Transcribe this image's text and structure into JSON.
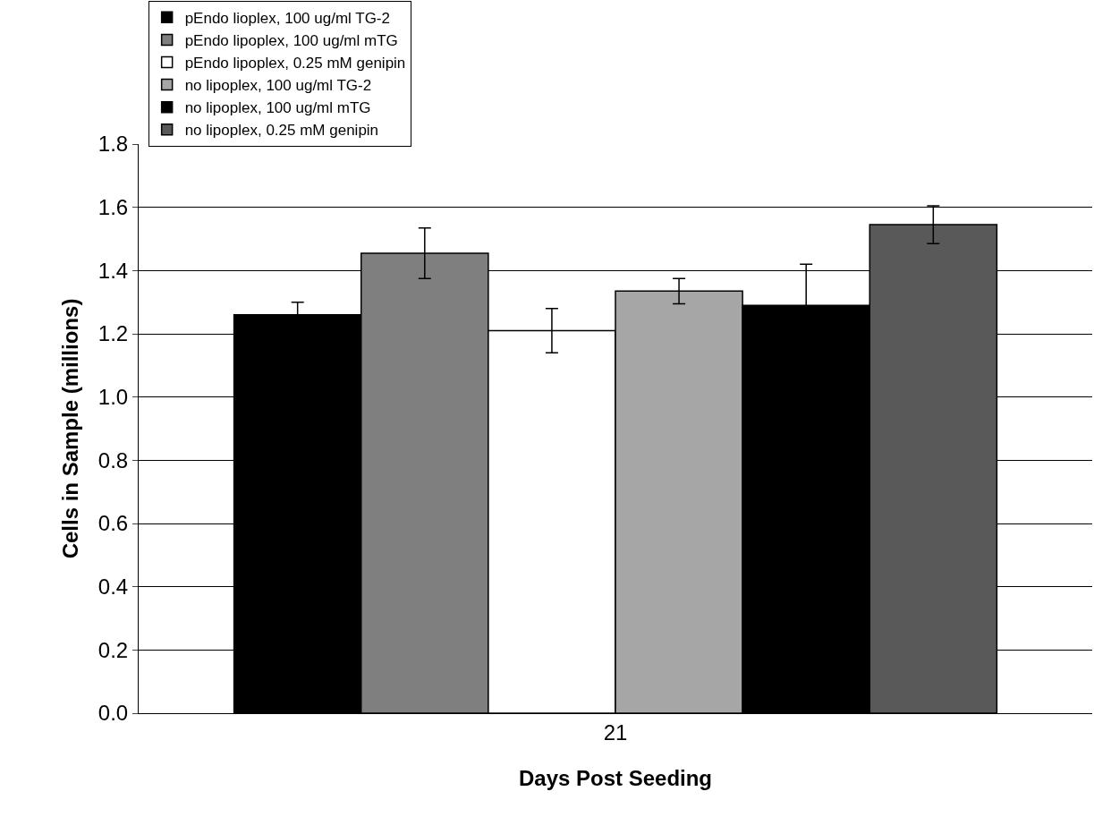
{
  "chart_data": {
    "type": "bar",
    "xlabel": "Days Post Seeding",
    "ylabel": "Cells in Sample (millions)",
    "categories": [
      "21"
    ],
    "series": [
      {
        "name": "pEndo lioplex, 100 ug/ml TG-2",
        "color": "#000000",
        "values": [
          1.26
        ],
        "errors": [
          0.04
        ]
      },
      {
        "name": "pEndo lipoplex, 100 ug/ml mTG",
        "color": "#7f7f7f",
        "values": [
          1.455
        ],
        "errors": [
          0.08
        ]
      },
      {
        "name": "pEndo lipoplex, 0.25 mM genipin",
        "color": "#ffffff",
        "values": [
          1.21
        ],
        "errors": [
          0.07
        ]
      },
      {
        "name": "no lipoplex, 100 ug/ml TG-2",
        "color": "#a6a6a6",
        "values": [
          1.335
        ],
        "errors": [
          0.04
        ]
      },
      {
        "name": "no lipoplex, 100 ug/ml mTG",
        "color": "#000000",
        "values": [
          1.29
        ],
        "errors": [
          0.13
        ]
      },
      {
        "name": "no lipoplex, 0.25 mM genipin",
        "color": "#595959",
        "values": [
          1.545
        ],
        "errors": [
          0.06
        ]
      }
    ],
    "ylim": [
      0,
      1.8
    ],
    "yticks": [
      {
        "value": 0,
        "label": "0.0"
      },
      {
        "value": 0.2,
        "label": "0.2"
      },
      {
        "value": 0.4,
        "label": "0.4"
      },
      {
        "value": 0.6,
        "label": "0.6"
      },
      {
        "value": 0.8,
        "label": "0.8"
      },
      {
        "value": 1.0,
        "label": "1.0"
      },
      {
        "value": 1.2,
        "label": "1.2"
      },
      {
        "value": 1.4,
        "label": "1.4"
      },
      {
        "value": 1.6,
        "label": "1.6"
      },
      {
        "value": 1.8,
        "label": "1.8"
      }
    ],
    "grid": "y",
    "legend": "top left"
  }
}
